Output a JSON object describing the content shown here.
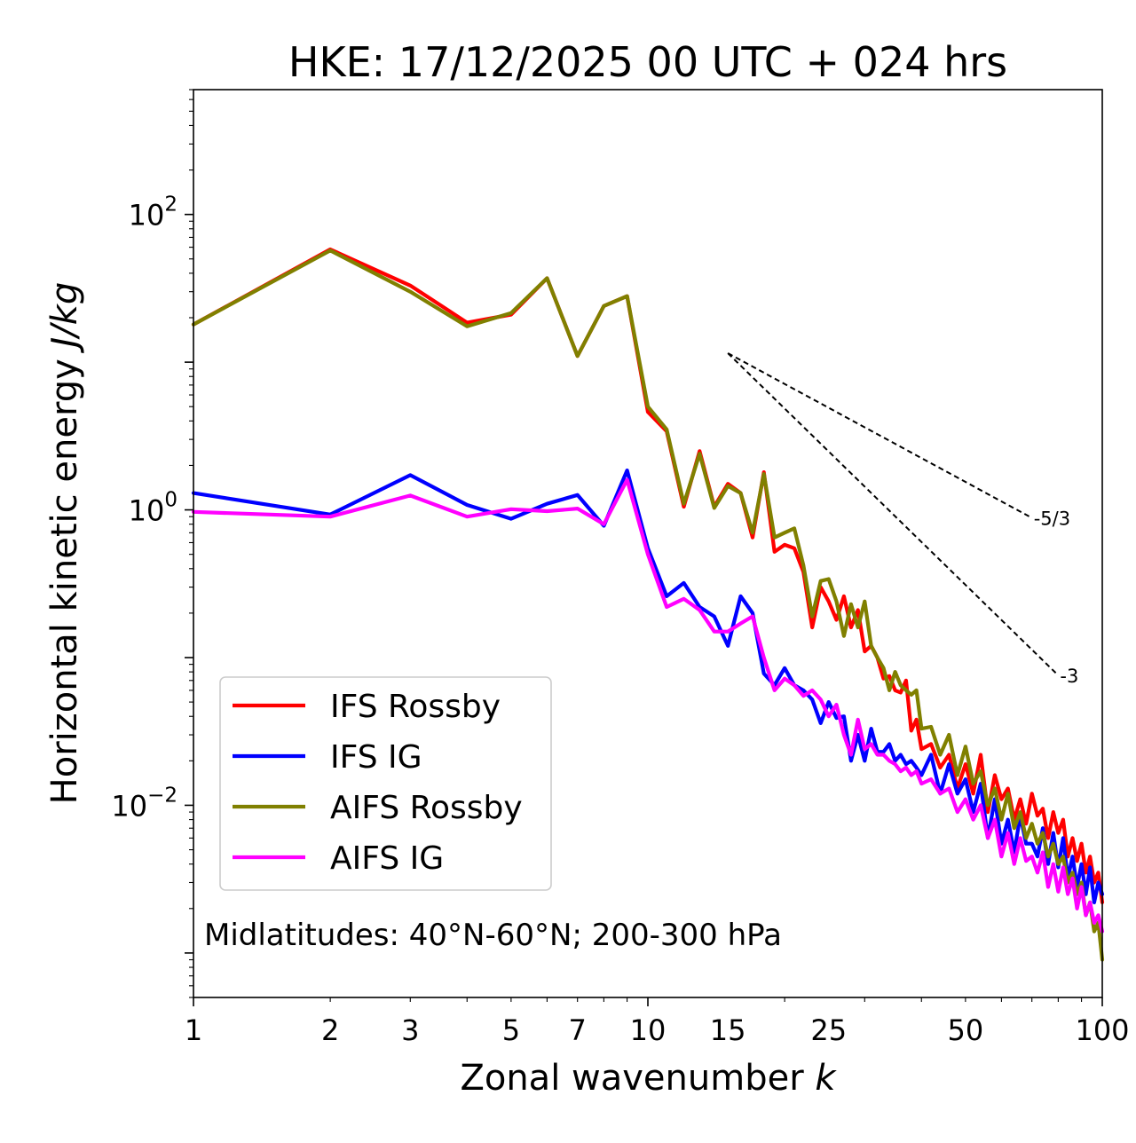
{
  "chart_data": {
    "type": "line",
    "title": "HKE: 17/12/2025 00 UTC + 024 hrs",
    "xlabel": "Zonal wavenumber",
    "xlabel_var": "k",
    "ylabel": "Horizontal kinetic energy",
    "ylabel_unit": "J/kg",
    "xscale": "log",
    "yscale": "log",
    "xlim": [
      1,
      100
    ],
    "ylim": [
      0.0005,
      700
    ],
    "x_ticks": [
      {
        "value": 1,
        "label": "1"
      },
      {
        "value": 2,
        "label": "2"
      },
      {
        "value": 3,
        "label": "3"
      },
      {
        "value": 5,
        "label": "5"
      },
      {
        "value": 7,
        "label": "7"
      },
      {
        "value": 10,
        "label": "10"
      },
      {
        "value": 15,
        "label": "15"
      },
      {
        "value": 25,
        "label": "25"
      },
      {
        "value": 50,
        "label": "50"
      },
      {
        "value": 100,
        "label": "100"
      }
    ],
    "y_ticks": [
      {
        "value": 100,
        "base": "10",
        "exp": "2"
      },
      {
        "value": 1,
        "base": "10",
        "exp": "0"
      },
      {
        "value": 0.01,
        "base": "10",
        "exp": "−2"
      }
    ],
    "annotation": "Midlatitudes: 40°N-60°N; 200-300 hPa",
    "legend_position": "lower-left",
    "reference_lines": [
      {
        "label": "-5/3",
        "slope": -1.6667,
        "x": [
          15,
          70
        ],
        "y_start": 11.5
      },
      {
        "label": "-3",
        "slope": -3,
        "x": [
          15,
          80
        ],
        "y_start": 11.5
      }
    ],
    "series": [
      {
        "name": "IFS Rossby",
        "color": "#ff0000",
        "x": [
          1,
          2,
          3,
          4,
          5,
          6,
          7,
          8,
          9,
          10,
          11,
          12,
          13,
          14,
          15,
          16,
          17,
          18,
          19,
          20,
          21,
          22,
          23,
          24,
          25,
          26,
          27,
          28,
          29,
          30,
          31,
          32,
          33,
          34,
          35,
          36,
          37,
          38,
          39,
          40,
          42,
          44,
          46,
          48,
          50,
          52,
          54,
          56,
          58,
          60,
          62,
          64,
          66,
          68,
          70,
          72,
          74,
          76,
          78,
          80,
          82,
          84,
          86,
          88,
          90,
          92,
          94,
          96,
          98,
          100
        ],
        "values": [
          18,
          58,
          33,
          18.5,
          21,
          37,
          11,
          24,
          28,
          4.6,
          3.4,
          1.05,
          2.5,
          1.05,
          1.5,
          1.3,
          0.65,
          1.8,
          0.52,
          0.58,
          0.55,
          0.38,
          0.16,
          0.3,
          0.24,
          0.18,
          0.26,
          0.16,
          0.21,
          0.11,
          0.12,
          0.1,
          0.072,
          0.075,
          0.06,
          0.058,
          0.07,
          0.032,
          0.038,
          0.024,
          0.026,
          0.018,
          0.022,
          0.013,
          0.019,
          0.012,
          0.022,
          0.009,
          0.016,
          0.011,
          0.013,
          0.008,
          0.011,
          0.0075,
          0.012,
          0.0085,
          0.0095,
          0.006,
          0.009,
          0.0065,
          0.008,
          0.0045,
          0.006,
          0.0042,
          0.0055,
          0.0035,
          0.0045,
          0.003,
          0.0035,
          0.0022
        ]
      },
      {
        "name": "IFS IG",
        "color": "#0000ff",
        "x": [
          1,
          2,
          3,
          4,
          5,
          6,
          7,
          8,
          9,
          10,
          11,
          12,
          13,
          14,
          15,
          16,
          17,
          18,
          19,
          20,
          21,
          22,
          23,
          24,
          25,
          26,
          27,
          28,
          29,
          30,
          31,
          32,
          33,
          34,
          35,
          36,
          37,
          38,
          39,
          40,
          42,
          44,
          46,
          48,
          50,
          52,
          54,
          56,
          58,
          60,
          62,
          64,
          66,
          68,
          70,
          72,
          74,
          76,
          78,
          80,
          82,
          84,
          86,
          88,
          90,
          92,
          94,
          96,
          98,
          100
        ],
        "values": [
          1.3,
          0.93,
          1.72,
          1.08,
          0.87,
          1.1,
          1.26,
          0.78,
          1.85,
          0.55,
          0.26,
          0.32,
          0.22,
          0.19,
          0.12,
          0.26,
          0.2,
          0.078,
          0.065,
          0.085,
          0.065,
          0.06,
          0.052,
          0.036,
          0.05,
          0.039,
          0.04,
          0.02,
          0.03,
          0.02,
          0.033,
          0.023,
          0.023,
          0.026,
          0.02,
          0.022,
          0.019,
          0.02,
          0.018,
          0.016,
          0.022,
          0.012,
          0.019,
          0.012,
          0.015,
          0.009,
          0.014,
          0.006,
          0.011,
          0.0055,
          0.008,
          0.0048,
          0.0085,
          0.0055,
          0.0055,
          0.0045,
          0.007,
          0.004,
          0.0065,
          0.0038,
          0.006,
          0.0032,
          0.0045,
          0.0028,
          0.004,
          0.0025,
          0.0038,
          0.0022,
          0.003,
          0.0025
        ]
      },
      {
        "name": "AIFS Rossby",
        "color": "#808000",
        "x": [
          1,
          2,
          3,
          4,
          5,
          6,
          7,
          8,
          9,
          10,
          11,
          12,
          13,
          14,
          15,
          16,
          17,
          18,
          19,
          20,
          21,
          22,
          23,
          24,
          25,
          26,
          27,
          28,
          29,
          30,
          31,
          32,
          33,
          34,
          35,
          36,
          37,
          38,
          39,
          40,
          42,
          44,
          46,
          48,
          50,
          52,
          54,
          56,
          58,
          60,
          62,
          64,
          66,
          68,
          70,
          72,
          74,
          76,
          78,
          80,
          82,
          84,
          86,
          88,
          90,
          92,
          94,
          96,
          98,
          100
        ],
        "values": [
          18,
          57,
          30,
          17.5,
          21.5,
          37,
          11,
          24,
          28,
          5,
          3.5,
          1.1,
          2.4,
          1.03,
          1.45,
          1.3,
          0.7,
          1.75,
          0.65,
          0.7,
          0.75,
          0.42,
          0.19,
          0.33,
          0.34,
          0.24,
          0.14,
          0.23,
          0.16,
          0.24,
          0.12,
          0.1,
          0.085,
          0.06,
          0.08,
          0.065,
          0.06,
          0.056,
          0.06,
          0.033,
          0.034,
          0.022,
          0.03,
          0.016,
          0.025,
          0.014,
          0.017,
          0.01,
          0.013,
          0.008,
          0.012,
          0.007,
          0.009,
          0.006,
          0.0075,
          0.0055,
          0.0065,
          0.0045,
          0.0055,
          0.004,
          0.0045,
          0.003,
          0.0035,
          0.0025,
          0.003,
          0.0018,
          0.0022,
          0.0014,
          0.0016,
          0.0009
        ]
      },
      {
        "name": "AIFS IG",
        "color": "#ff00ff",
        "x": [
          1,
          2,
          3,
          4,
          5,
          6,
          7,
          8,
          9,
          10,
          11,
          12,
          13,
          14,
          15,
          16,
          17,
          18,
          19,
          20,
          21,
          22,
          23,
          24,
          25,
          26,
          27,
          28,
          29,
          30,
          31,
          32,
          33,
          34,
          35,
          36,
          37,
          38,
          39,
          40,
          42,
          44,
          46,
          48,
          50,
          52,
          54,
          56,
          58,
          60,
          62,
          64,
          66,
          68,
          70,
          72,
          74,
          76,
          78,
          80,
          82,
          84,
          86,
          88,
          90,
          92,
          94,
          96,
          98,
          100
        ],
        "values": [
          0.97,
          0.9,
          1.25,
          0.9,
          1.01,
          0.98,
          1.02,
          0.8,
          1.6,
          0.5,
          0.22,
          0.25,
          0.21,
          0.15,
          0.15,
          0.17,
          0.19,
          0.1,
          0.06,
          0.072,
          0.065,
          0.055,
          0.06,
          0.052,
          0.04,
          0.048,
          0.03,
          0.022,
          0.038,
          0.024,
          0.026,
          0.022,
          0.022,
          0.02,
          0.019,
          0.017,
          0.018,
          0.016,
          0.017,
          0.014,
          0.015,
          0.012,
          0.013,
          0.009,
          0.011,
          0.008,
          0.01,
          0.006,
          0.008,
          0.0045,
          0.0065,
          0.004,
          0.006,
          0.0042,
          0.0045,
          0.0035,
          0.0048,
          0.0028,
          0.004,
          0.0026,
          0.0038,
          0.0025,
          0.0032,
          0.002,
          0.0028,
          0.0018,
          0.0022,
          0.0016,
          0.0018,
          0.0014
        ]
      }
    ]
  }
}
